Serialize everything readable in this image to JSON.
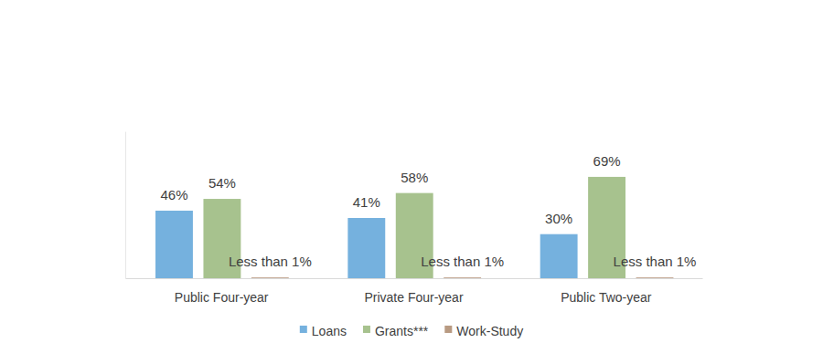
{
  "chart_data": {
    "type": "bar",
    "categories": [
      "Public Four-year",
      "Private Four-year",
      "Public Two-year"
    ],
    "series": [
      {
        "name": "Loans",
        "color": "#75b1de",
        "values": [
          46,
          41,
          30
        ],
        "value_labels": [
          "46%",
          "41%",
          "30%"
        ]
      },
      {
        "name": "Grants***",
        "color": "#a7c28e",
        "values": [
          54,
          58,
          69
        ],
        "value_labels": [
          "54%",
          "58%",
          "69%"
        ]
      },
      {
        "name": "Work-Study",
        "color": "#b89a82",
        "values": [
          0.5,
          0.5,
          0.5
        ],
        "value_labels": [
          "Less than 1%",
          "Less than 1%",
          "Less than 1%"
        ]
      }
    ],
    "ylim": [
      0,
      100
    ],
    "data_labels": true,
    "tick_labels": "x",
    "legend": "bottom"
  }
}
